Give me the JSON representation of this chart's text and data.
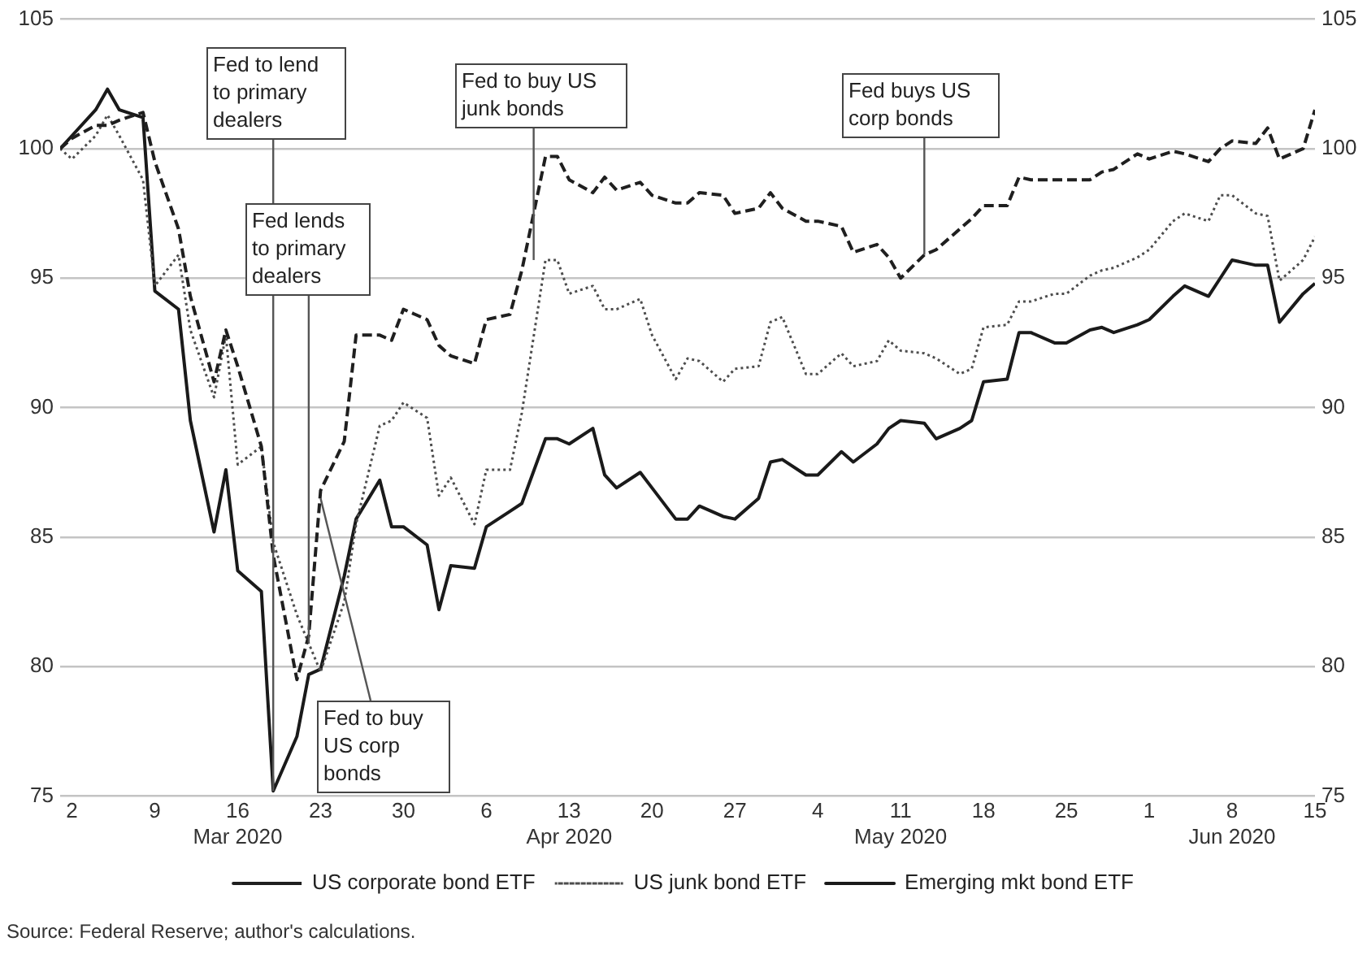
{
  "chart_data": {
    "type": "line",
    "x": [
      "2020-03-01",
      "2020-03-02",
      "2020-03-04",
      "2020-03-05",
      "2020-03-06",
      "2020-03-08",
      "2020-03-09",
      "2020-03-11",
      "2020-03-12",
      "2020-03-14",
      "2020-03-15",
      "2020-03-16",
      "2020-03-18",
      "2020-03-19",
      "2020-03-21",
      "2020-03-22",
      "2020-03-23",
      "2020-03-25",
      "2020-03-26",
      "2020-03-28",
      "2020-03-29",
      "2020-03-30",
      "2020-04-01",
      "2020-04-02",
      "2020-04-03",
      "2020-04-05",
      "2020-04-06",
      "2020-04-08",
      "2020-04-09",
      "2020-04-11",
      "2020-04-12",
      "2020-04-13",
      "2020-04-15",
      "2020-04-16",
      "2020-04-17",
      "2020-04-19",
      "2020-04-20",
      "2020-04-22",
      "2020-04-23",
      "2020-04-24",
      "2020-04-26",
      "2020-04-27",
      "2020-04-29",
      "2020-04-30",
      "2020-05-01",
      "2020-05-03",
      "2020-05-04",
      "2020-05-06",
      "2020-05-07",
      "2020-05-09",
      "2020-05-10",
      "2020-05-11",
      "2020-05-13",
      "2020-05-14",
      "2020-05-16",
      "2020-05-17",
      "2020-05-18",
      "2020-05-20",
      "2020-05-21",
      "2020-05-22",
      "2020-05-24",
      "2020-05-25",
      "2020-05-27",
      "2020-05-28",
      "2020-05-29",
      "2020-05-31",
      "2020-06-01",
      "2020-06-03",
      "2020-06-04",
      "2020-06-06",
      "2020-06-07",
      "2020-06-08",
      "2020-06-10",
      "2020-06-11",
      "2020-06-12",
      "2020-06-14",
      "2020-06-15"
    ],
    "series": [
      {
        "name": "US corporate bond ETF",
        "color": "#1f1f1f",
        "line_style": "dashed",
        "values": [
          100,
          100.4,
          100.9,
          100.9,
          101.1,
          101.4,
          99.5,
          96.9,
          94.3,
          91.0,
          93.0,
          91.6,
          88.5,
          84.3,
          79.5,
          81.2,
          86.8,
          88.7,
          92.8,
          92.8,
          92.6,
          93.8,
          93.4,
          92.4,
          92.0,
          91.7,
          93.4,
          93.6,
          95.3,
          99.7,
          99.7,
          98.8,
          98.3,
          98.9,
          98.4,
          98.7,
          98.2,
          97.9,
          97.9,
          98.3,
          98.2,
          97.5,
          97.7,
          98.3,
          97.7,
          97.2,
          97.2,
          97.0,
          96.0,
          96.3,
          95.8,
          95.0,
          95.9,
          96.1,
          96.9,
          97.3,
          97.8,
          97.8,
          98.9,
          98.8,
          98.8,
          98.8,
          98.8,
          99.1,
          99.2,
          99.8,
          99.6,
          99.9,
          99.8,
          99.5,
          100.0,
          100.3,
          100.2,
          100.8,
          99.6,
          100.0,
          101.5
        ]
      },
      {
        "name": "US junk bond ETF",
        "color": "#4d4d4d",
        "line_style": "dotted",
        "values": [
          100,
          99.6,
          100.5,
          101.3,
          100.5,
          98.8,
          94.7,
          95.9,
          93.0,
          90.4,
          92.8,
          87.8,
          88.5,
          84.8,
          82.0,
          80.9,
          79.8,
          82.5,
          85.5,
          89.3,
          89.5,
          90.2,
          89.6,
          86.6,
          87.3,
          85.5,
          87.6,
          87.6,
          89.8,
          95.7,
          95.7,
          94.4,
          94.7,
          93.8,
          93.8,
          94.2,
          92.8,
          91.1,
          91.9,
          91.8,
          91.0,
          91.5,
          91.6,
          93.3,
          93.5,
          91.3,
          91.3,
          92.1,
          91.6,
          91.8,
          92.6,
          92.2,
          92.1,
          91.9,
          91.3,
          91.5,
          93.1,
          93.2,
          94.1,
          94.1,
          94.4,
          94.4,
          95.1,
          95.3,
          95.4,
          95.8,
          96.1,
          97.2,
          97.5,
          97.2,
          98.2,
          98.2,
          97.5,
          97.4,
          94.9,
          95.7,
          96.6
        ]
      },
      {
        "name": "Emerging mkt bond ETF",
        "color": "#1a1a1a",
        "line_style": "solid",
        "values": [
          100,
          100.5,
          101.5,
          102.3,
          101.5,
          101.2,
          94.5,
          93.8,
          89.5,
          85.2,
          87.6,
          83.7,
          82.9,
          75.2,
          77.3,
          79.7,
          79.9,
          83.5,
          85.7,
          87.2,
          85.4,
          85.4,
          84.7,
          82.2,
          83.9,
          83.8,
          85.4,
          86.0,
          86.3,
          88.8,
          88.8,
          88.6,
          89.2,
          87.4,
          86.9,
          87.5,
          86.9,
          85.7,
          85.7,
          86.2,
          85.8,
          85.7,
          86.5,
          87.9,
          88.0,
          87.4,
          87.4,
          88.3,
          87.9,
          88.6,
          89.2,
          89.5,
          89.4,
          88.8,
          89.2,
          89.5,
          91.0,
          91.1,
          92.9,
          92.9,
          92.5,
          92.5,
          93.0,
          93.1,
          92.9,
          93.2,
          93.4,
          94.3,
          94.7,
          94.3,
          95.0,
          95.7,
          95.5,
          95.5,
          93.3,
          94.4,
          94.8
        ]
      }
    ],
    "xlim": [
      "2020-03-01",
      "2020-06-15"
    ],
    "xticks": [
      {
        "value": "2020-03-02",
        "label": "2"
      },
      {
        "value": "2020-03-09",
        "label": "9"
      },
      {
        "value": "2020-03-16",
        "label": "16\nMar 2020"
      },
      {
        "value": "2020-03-23",
        "label": "23"
      },
      {
        "value": "2020-03-30",
        "label": "30"
      },
      {
        "value": "2020-04-06",
        "label": "6"
      },
      {
        "value": "2020-04-13",
        "label": "13\nApr 2020"
      },
      {
        "value": "2020-04-20",
        "label": "20"
      },
      {
        "value": "2020-04-27",
        "label": "27"
      },
      {
        "value": "2020-05-04",
        "label": "4"
      },
      {
        "value": "2020-05-11",
        "label": "11\nMay 2020"
      },
      {
        "value": "2020-05-18",
        "label": "18"
      },
      {
        "value": "2020-05-25",
        "label": "25"
      },
      {
        "value": "2020-06-01",
        "label": "1"
      },
      {
        "value": "2020-06-08",
        "label": "8\nJun 2020"
      },
      {
        "value": "2020-06-15",
        "label": "15"
      }
    ],
    "ylim": [
      75,
      105
    ],
    "yticks": [
      75,
      80,
      85,
      90,
      95,
      100,
      105
    ],
    "y2lim": [
      75,
      105
    ],
    "y2ticks": [
      75,
      80,
      85,
      90,
      95,
      100,
      105
    ],
    "grid": "y",
    "legend": "bottom",
    "marker": "none",
    "annotations": [
      {
        "text": "Fed to lend to primary dealers",
        "x": "2020-03-19",
        "y": 75.2
      },
      {
        "text": "Fed lends to primary dealers",
        "x": "2020-03-22",
        "y": 80.9
      },
      {
        "text": "Fed to buy US junk bonds",
        "x": "2020-04-10",
        "y": 95.7
      },
      {
        "text": "Fed buys US corp bonds",
        "x": "2020-05-13",
        "y": 95.9
      },
      {
        "text": "Fed to buy US corp bonds",
        "x": "2020-03-23",
        "y": 86.5
      },
      "Source: Federal Reserve; author's calculations."
    ]
  }
}
